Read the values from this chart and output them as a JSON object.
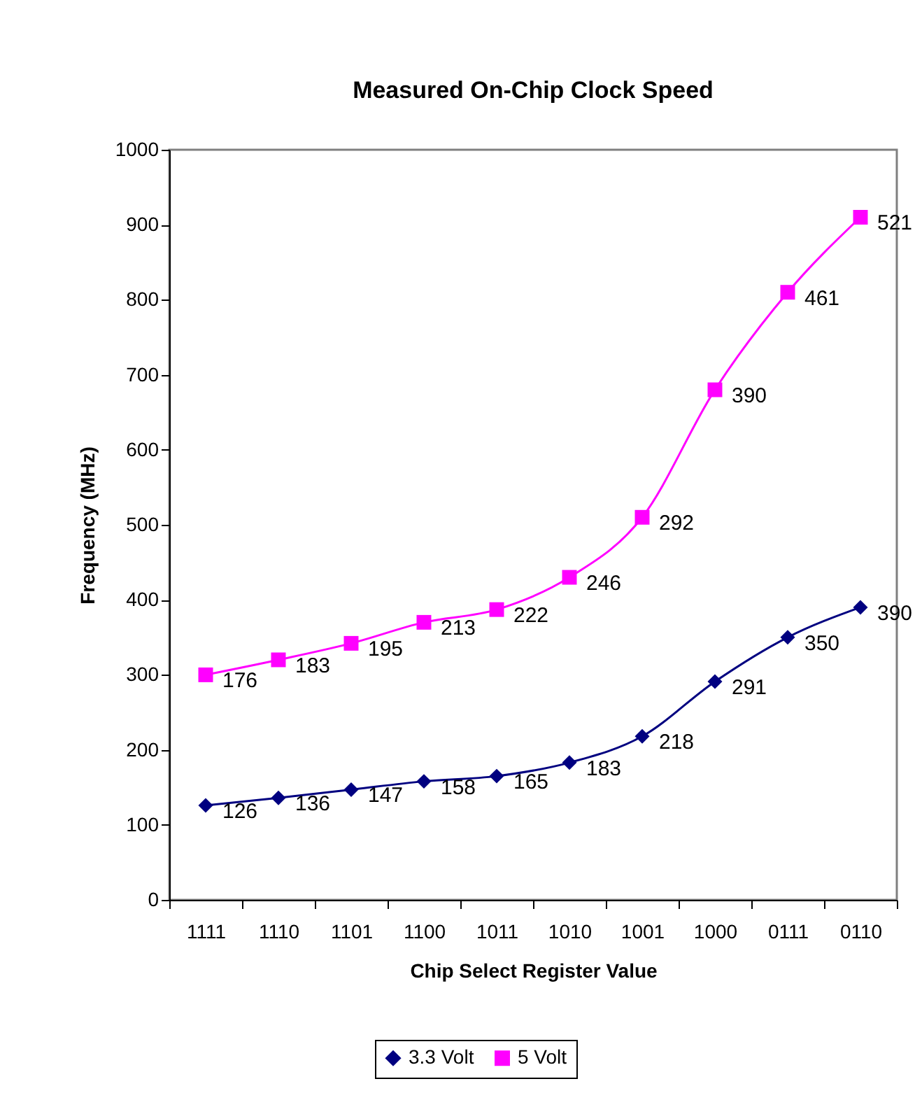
{
  "chart_data": {
    "type": "line",
    "title": "Measured On-Chip Clock Speed",
    "xlabel": "Chip Select Register Value",
    "ylabel": "Frequency (MHz)",
    "categories": [
      "1111",
      "1110",
      "1101",
      "1100",
      "1011",
      "1010",
      "1001",
      "1000",
      "0111",
      "0110"
    ],
    "series": [
      {
        "name": "3.3 Volt",
        "color": "#000080",
        "marker": "diamond",
        "values": [
          126,
          136,
          147,
          158,
          165,
          183,
          218,
          291,
          350,
          390
        ],
        "value_labels": [
          "126",
          "136",
          "147",
          "158",
          "165",
          "183",
          "218",
          "291",
          "350",
          "390"
        ]
      },
      {
        "name": "5 Volt",
        "color": "#ff00ff",
        "marker": "square",
        "values": [
          300,
          320,
          342,
          370,
          387,
          430,
          510,
          680,
          810,
          910
        ]
      }
    ],
    "annotations": [
      {
        "text": "176",
        "x": "1111",
        "y": 300
      },
      {
        "text": "183",
        "x": "1110",
        "y": 320
      },
      {
        "text": "195",
        "x": "1101",
        "y": 342
      },
      {
        "text": "213",
        "x": "1100",
        "y": 370
      },
      {
        "text": "222",
        "x": "1011",
        "y": 387
      },
      {
        "text": "246",
        "x": "1010",
        "y": 430
      },
      {
        "text": "292",
        "x": "1001",
        "y": 510
      },
      {
        "text": "390",
        "x": "1000",
        "y": 680
      },
      {
        "text": "461",
        "x": "0111",
        "y": 810
      },
      {
        "text": "521",
        "x": "0110",
        "y": 910
      }
    ],
    "ylim": [
      0,
      1000
    ],
    "yticks": [
      0,
      100,
      200,
      300,
      400,
      500,
      600,
      700,
      800,
      900,
      1000
    ],
    "grid": false,
    "legend": "bottom"
  }
}
